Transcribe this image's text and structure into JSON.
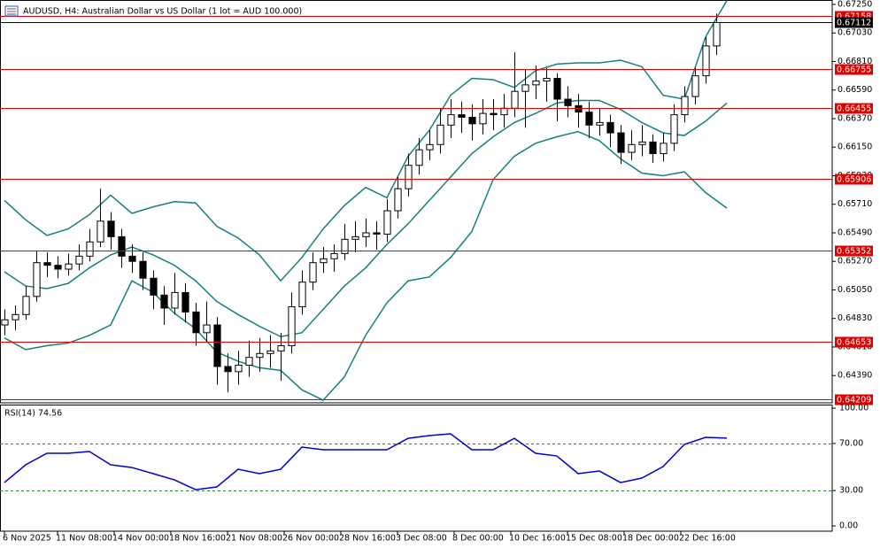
{
  "chart_data": [
    {
      "type": "candlestick",
      "title": "AUDUSD, H4:  Australian Dollar vs US Dollar (1 lot = AUD 100.000)",
      "xlim": [
        -1.25,
        233.75
      ],
      "ylim": [
        0.6418,
        0.67284
      ],
      "x": [
        0,
        3,
        6,
        9,
        12,
        15,
        18,
        21,
        24,
        27,
        30,
        33,
        36,
        39,
        42,
        45,
        48,
        51,
        54,
        57,
        60,
        63,
        66,
        69,
        72,
        75,
        78,
        81,
        84,
        87,
        90,
        93,
        96,
        99,
        102,
        105,
        108,
        111,
        114,
        117,
        120,
        123,
        126,
        129,
        132,
        135,
        138,
        141,
        144,
        147,
        150,
        153,
        156,
        159,
        162,
        165,
        168,
        171,
        174,
        177,
        180,
        183,
        186,
        189,
        192,
        195,
        198,
        201
      ],
      "open": [
        0.6478,
        0.6482,
        0.6486,
        0.65,
        0.6526,
        0.6524,
        0.6521,
        0.6525,
        0.6531,
        0.6542,
        0.6558,
        0.6546,
        0.6531,
        0.6527,
        0.6514,
        0.6501,
        0.6491,
        0.6503,
        0.6488,
        0.6472,
        0.6478,
        0.6446,
        0.6442,
        0.6447,
        0.6453,
        0.6456,
        0.6458,
        0.6462,
        0.6492,
        0.6511,
        0.6526,
        0.6529,
        0.6533,
        0.6544,
        0.6546,
        0.6549,
        0.6548,
        0.6566,
        0.6583,
        0.6601,
        0.6613,
        0.6617,
        0.6632,
        0.664,
        0.6638,
        0.6633,
        0.6641,
        0.664,
        0.6645,
        0.6658,
        0.6663,
        0.6666,
        0.6668,
        0.6652,
        0.6647,
        0.6642,
        0.6632,
        0.6634,
        0.6626,
        0.6611,
        0.6617,
        0.6619,
        0.661,
        0.6618,
        0.664,
        0.6654,
        0.667,
        0.6693
      ],
      "high": [
        0.649,
        0.6493,
        0.6508,
        0.6535,
        0.6534,
        0.6531,
        0.6533,
        0.654,
        0.6552,
        0.6583,
        0.6565,
        0.6552,
        0.654,
        0.6534,
        0.652,
        0.6508,
        0.6518,
        0.651,
        0.6495,
        0.6496,
        0.6484,
        0.6456,
        0.6458,
        0.6466,
        0.6468,
        0.647,
        0.6472,
        0.6503,
        0.652,
        0.6534,
        0.6538,
        0.654,
        0.6556,
        0.6558,
        0.656,
        0.6558,
        0.6575,
        0.6592,
        0.661,
        0.6622,
        0.6628,
        0.6645,
        0.6652,
        0.665,
        0.6648,
        0.6652,
        0.6652,
        0.6656,
        0.6688,
        0.6675,
        0.6678,
        0.6676,
        0.6672,
        0.6662,
        0.6656,
        0.665,
        0.6645,
        0.664,
        0.6632,
        0.6628,
        0.6632,
        0.6625,
        0.6626,
        0.6648,
        0.6662,
        0.6676,
        0.67,
        0.6718
      ],
      "low": [
        0.647,
        0.6474,
        0.6482,
        0.6496,
        0.6515,
        0.6514,
        0.6516,
        0.652,
        0.6527,
        0.6538,
        0.6536,
        0.6522,
        0.6518,
        0.6505,
        0.649,
        0.6478,
        0.6486,
        0.648,
        0.6462,
        0.6465,
        0.6432,
        0.6426,
        0.6432,
        0.6438,
        0.6442,
        0.6445,
        0.6435,
        0.6456,
        0.6486,
        0.6505,
        0.6518,
        0.6519,
        0.6528,
        0.6534,
        0.6538,
        0.6536,
        0.6542,
        0.656,
        0.6577,
        0.6594,
        0.6605,
        0.661,
        0.6622,
        0.6626,
        0.662,
        0.6625,
        0.6628,
        0.663,
        0.6638,
        0.663,
        0.6652,
        0.665,
        0.6635,
        0.6638,
        0.663,
        0.6622,
        0.6624,
        0.6615,
        0.6602,
        0.6605,
        0.6608,
        0.6603,
        0.6604,
        0.6612,
        0.6634,
        0.6648,
        0.6664,
        0.6686
      ],
      "close": [
        0.6482,
        0.6486,
        0.65,
        0.6526,
        0.6524,
        0.6521,
        0.6525,
        0.6531,
        0.6542,
        0.6558,
        0.6546,
        0.6531,
        0.6527,
        0.6514,
        0.6501,
        0.6491,
        0.6503,
        0.6488,
        0.6472,
        0.6478,
        0.6446,
        0.6442,
        0.6447,
        0.6453,
        0.6456,
        0.6458,
        0.6462,
        0.6492,
        0.6511,
        0.6526,
        0.6529,
        0.6533,
        0.6544,
        0.6546,
        0.6549,
        0.6548,
        0.6566,
        0.6583,
        0.6601,
        0.6613,
        0.6617,
        0.6632,
        0.664,
        0.6638,
        0.6633,
        0.6641,
        0.664,
        0.6645,
        0.6658,
        0.6663,
        0.6666,
        0.6668,
        0.6652,
        0.6647,
        0.6642,
        0.6632,
        0.6634,
        0.6626,
        0.6611,
        0.6617,
        0.6619,
        0.661,
        0.6618,
        0.664,
        0.6654,
        0.667,
        0.6693,
        0.6711
      ],
      "overlay_x": [
        0,
        6,
        12,
        18,
        24,
        30,
        36,
        42,
        48,
        54,
        60,
        66,
        72,
        78,
        84,
        90,
        96,
        102,
        108,
        114,
        120,
        126,
        132,
        138,
        144,
        150,
        156,
        162,
        168,
        174,
        180,
        186,
        192,
        198,
        204
      ],
      "overlays": [
        {
          "color": "#138080",
          "values": [
            0.6574,
            0.6559,
            0.6547,
            0.6552,
            0.6563,
            0.6578,
            0.6564,
            0.6569,
            0.6573,
            0.6572,
            0.6554,
            0.6545,
            0.6532,
            0.6512,
            0.653,
            0.6552,
            0.657,
            0.6584,
            0.6576,
            0.6608,
            0.6628,
            0.6655,
            0.6668,
            0.6667,
            0.6661,
            0.6674,
            0.6679,
            0.668,
            0.668,
            0.6682,
            0.6677,
            0.6655,
            0.6652,
            0.67,
            0.6728
          ]
        },
        {
          "color": "#138080",
          "values": [
            0.6519,
            0.6508,
            0.6506,
            0.651,
            0.6522,
            0.6532,
            0.6538,
            0.6532,
            0.6524,
            0.6512,
            0.6496,
            0.6486,
            0.6477,
            0.6469,
            0.6472,
            0.649,
            0.6508,
            0.6522,
            0.654,
            0.6556,
            0.6574,
            0.6592,
            0.661,
            0.6623,
            0.6634,
            0.6641,
            0.6649,
            0.6651,
            0.6651,
            0.6644,
            0.6634,
            0.6626,
            0.6624,
            0.6635,
            0.6649
          ]
        },
        {
          "color": "#138080",
          "values": [
            0.6468,
            0.6459,
            0.6462,
            0.6464,
            0.647,
            0.6478,
            0.6512,
            0.6503,
            0.6487,
            0.6475,
            0.6457,
            0.645,
            0.6445,
            0.6443,
            0.6428,
            0.642,
            0.6438,
            0.647,
            0.6495,
            0.6512,
            0.6515,
            0.653,
            0.655,
            0.659,
            0.6608,
            0.6618,
            0.6623,
            0.6627,
            0.662,
            0.6606,
            0.6595,
            0.6593,
            0.6596,
            0.658,
            0.6568
          ]
        }
      ],
      "yticks": [
        {
          "value": 0.6725,
          "label": "0.67250"
        },
        {
          "value": 0.6703,
          "label": "0.67030"
        },
        {
          "value": 0.6681,
          "label": "0.66810"
        },
        {
          "value": 0.6659,
          "label": "0.66590"
        },
        {
          "value": 0.6637,
          "label": "0.66370"
        },
        {
          "value": 0.6615,
          "label": "0.66150"
        },
        {
          "value": 0.6593,
          "label": "0.65930"
        },
        {
          "value": 0.6571,
          "label": "0.65710"
        },
        {
          "value": 0.6549,
          "label": "0.65490"
        },
        {
          "value": 0.6527,
          "label": "0.65270"
        },
        {
          "value": 0.6505,
          "label": "0.65050"
        },
        {
          "value": 0.6483,
          "label": "0.64830"
        },
        {
          "value": 0.6461,
          "label": "0.64610"
        },
        {
          "value": 0.6439,
          "label": "0.64390"
        }
      ],
      "xticks": [
        {
          "value": 0,
          "label": "6 Nov 2025"
        },
        {
          "value": 15,
          "label": "11 Nov 08:00"
        },
        {
          "value": 31,
          "label": "14 Nov 00:00"
        },
        {
          "value": 47,
          "label": "18 Nov 16:00"
        },
        {
          "value": 63,
          "label": "21 Nov 08:00"
        },
        {
          "value": 79,
          "label": "26 Nov 00:00"
        },
        {
          "value": 95,
          "label": "28 Nov 16:00"
        },
        {
          "value": 111,
          "label": "3 Dec 08:00"
        },
        {
          "value": 127,
          "label": "8 Dec 00:00"
        },
        {
          "value": 143,
          "label": "10 Dec 16:00"
        },
        {
          "value": 159,
          "label": "15 Dec 08:00"
        },
        {
          "value": 175,
          "label": "18 Dec 00:00"
        },
        {
          "value": 191,
          "label": "22 Dec 16:00"
        }
      ],
      "levels": [
        {
          "value": 0.67158,
          "label": "0.67158"
        },
        {
          "value": 0.66755,
          "label": "0.66755"
        },
        {
          "value": 0.66455,
          "label": "0.66455"
        },
        {
          "value": 0.65906,
          "label": "0.65906"
        },
        {
          "value": 0.65352,
          "label": "0.65352"
        },
        {
          "value": 0.64653,
          "label": "0.64653"
        },
        {
          "value": 0.64209,
          "label": "0.64209"
        }
      ],
      "level_color": "#e00000",
      "current_price": {
        "value": 0.67112,
        "label": "0.67112"
      }
    },
    {
      "type": "line",
      "title": "RSI(14) 74.56",
      "color": "#0000cc",
      "xlim": [
        -1.25,
        233.75
      ],
      "ylim": [
        -4.5,
        102.3
      ],
      "x": [
        0,
        6,
        12,
        18,
        24,
        30,
        36,
        42,
        48,
        54,
        60,
        66,
        72,
        78,
        84,
        90,
        96,
        102,
        108,
        114,
        120,
        126,
        132,
        138,
        144,
        150,
        156,
        162,
        168,
        174,
        180,
        186,
        192,
        198,
        204
      ],
      "values": [
        36.8,
        51.9,
        61.7,
        61.7,
        63.2,
        51.9,
        49.6,
        44.4,
        39.1,
        30.8,
        33.1,
        48.1,
        44.4,
        48.1,
        66.9,
        64.7,
        64.7,
        64.7,
        64.7,
        74.4,
        76.7,
        78.2,
        64.7,
        64.7,
        74.4,
        61.7,
        59.4,
        44.4,
        46.6,
        36.8,
        40.6,
        50.4,
        69.2,
        75.2,
        74.56
      ],
      "yticks": [
        {
          "value": 100,
          "label": "100.00"
        },
        {
          "value": 70,
          "label": "70.00"
        },
        {
          "value": 30,
          "label": "30.00"
        },
        {
          "value": 0,
          "label": "0.00"
        }
      ],
      "levels": [
        70,
        30
      ]
    }
  ]
}
